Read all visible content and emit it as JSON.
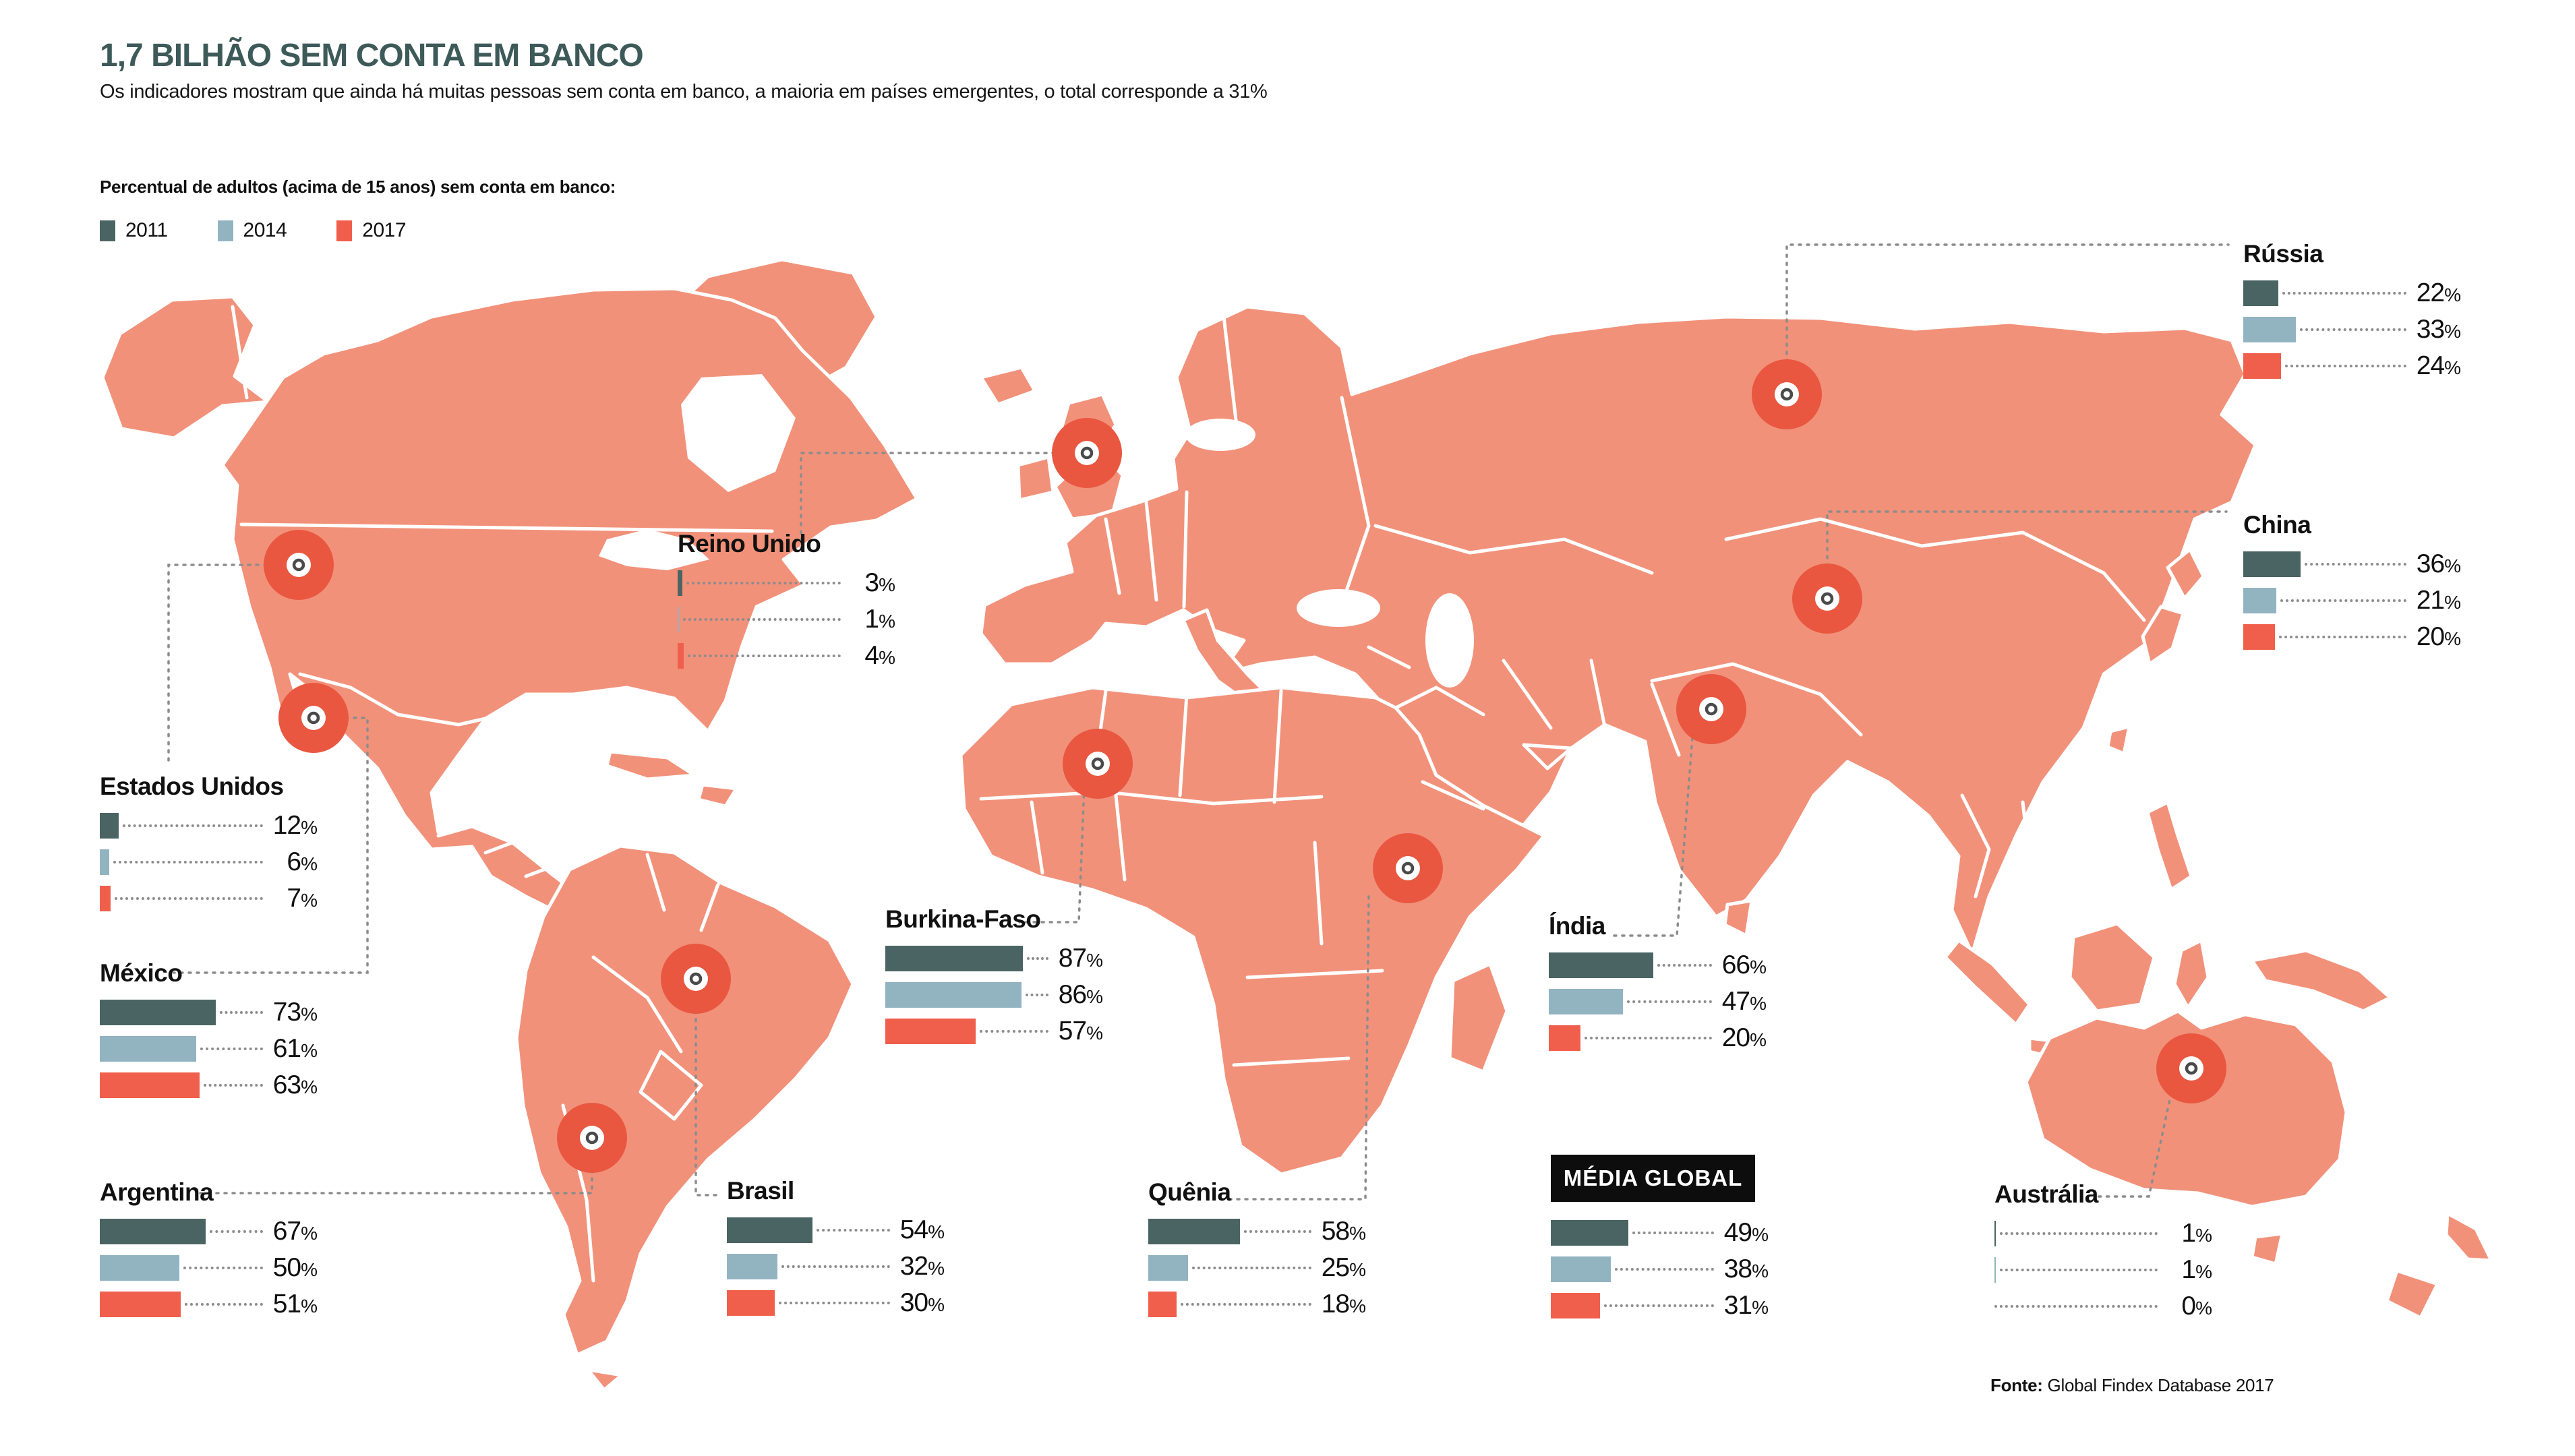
{
  "header": {
    "title": "1,7 BILHÃO SEM CONTA EM BANCO",
    "subtitle": "Os indicadores mostram que ainda há muitas pessoas sem conta em banco, a maioria em países emergentes, o total corresponde a 31%"
  },
  "legend": {
    "heading": "Percentual de adultos (acima de 15 anos) sem conta em banco:",
    "years": [
      {
        "label": "2011",
        "color": "#4A6463"
      },
      {
        "label": "2014",
        "color": "#92B4C1"
      },
      {
        "label": "2017",
        "color": "#F05F4B"
      }
    ]
  },
  "map": {
    "land_color": "#F2917A",
    "border_color": "#FFFFFF",
    "marker_color": "#E95740",
    "leader_line_color": "#8C8C8C",
    "marked_countries": [
      "Estados Unidos",
      "México",
      "Reino Unido",
      "Brasil",
      "Argentina",
      "Burkina-Faso",
      "Quênia",
      "Índia",
      "Rússia",
      "China",
      "Austrália"
    ]
  },
  "chart_data": {
    "type": "bar",
    "orientation": "horizontal",
    "unit": "%",
    "years": [
      "2011",
      "2014",
      "2017"
    ],
    "colors": [
      "#4A6463",
      "#92B4C1",
      "#F05F4B"
    ],
    "xlim": [
      0,
      100
    ],
    "countries": [
      {
        "name": "Estados Unidos",
        "values": [
          12,
          6,
          7
        ]
      },
      {
        "name": "México",
        "values": [
          73,
          61,
          63
        ]
      },
      {
        "name": "Argentina",
        "values": [
          67,
          50,
          51
        ]
      },
      {
        "name": "Reino Unido",
        "values": [
          3,
          1,
          4
        ]
      },
      {
        "name": "Burkina-Faso",
        "values": [
          87,
          86,
          57
        ]
      },
      {
        "name": "Brasil",
        "values": [
          54,
          32,
          30
        ]
      },
      {
        "name": "Quênia",
        "values": [
          58,
          25,
          18
        ]
      },
      {
        "name": "Índia",
        "values": [
          66,
          47,
          20
        ]
      },
      {
        "name": "MÉDIA GLOBAL",
        "values": [
          49,
          38,
          31
        ],
        "badge": true
      },
      {
        "name": "Austrália",
        "values": [
          1,
          1,
          0
        ]
      },
      {
        "name": "Rússia",
        "values": [
          22,
          33,
          24
        ]
      },
      {
        "name": "China",
        "values": [
          36,
          21,
          20
        ]
      }
    ]
  },
  "source": {
    "prefix": "Fonte:",
    "text": " Global Findex Database 2017"
  }
}
